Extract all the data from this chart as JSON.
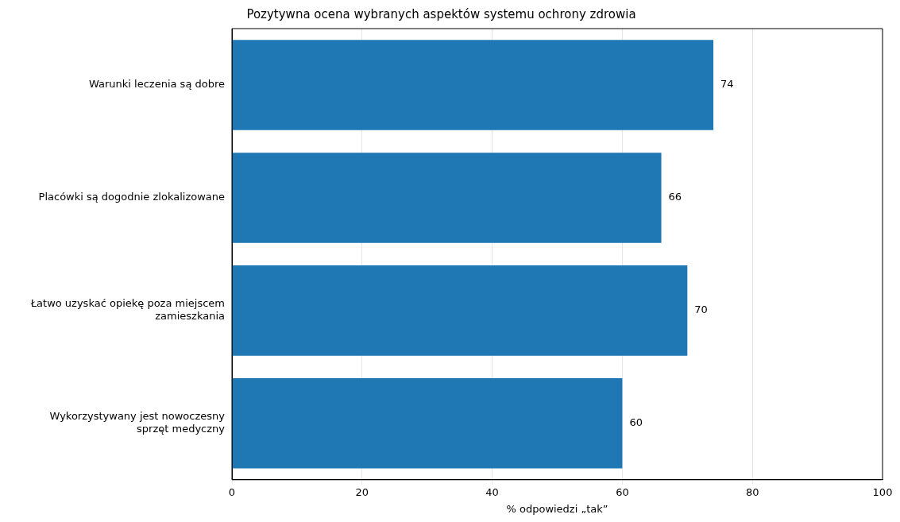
{
  "chart_data": {
    "type": "bar",
    "orientation": "horizontal",
    "title": "Pozytywna ocena wybranych aspektów systemu ochrony zdrowia",
    "xlabel": "% odpowiedzi „tak”",
    "categories": [
      "Warunki leczenia są dobre",
      "Placówki są dogodnie zlokalizowane",
      "Łatwo uzyskać opiekę poza miejscem zamieszkania",
      "Wykorzystywany jest nowoczesny sprzęt medyczny"
    ],
    "values": [
      74,
      66,
      70,
      60
    ],
    "color": "#1f77b4",
    "xlim": [
      0,
      100
    ],
    "xticks": [
      0,
      20,
      40,
      60,
      80,
      100
    ],
    "grid": "x",
    "data_labels": true
  }
}
